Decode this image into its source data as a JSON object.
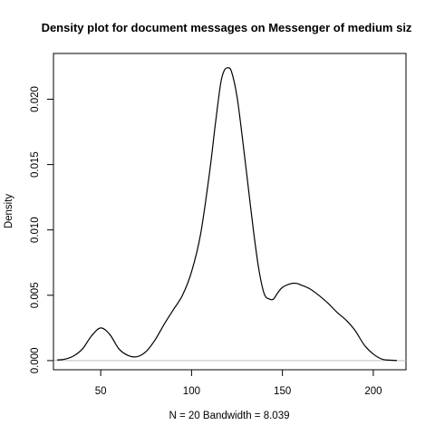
{
  "chart_data": {
    "type": "line",
    "title": "Density plot for document messages on Messenger of medium siz",
    "xlabel": "N = 20   Bandwidth = 8.039",
    "ylabel": "Density",
    "xlim": [
      24,
      218
    ],
    "ylim": [
      -0.0007,
      0.0235
    ],
    "x_ticks": [
      50,
      100,
      150,
      200
    ],
    "y_ticks": [
      0.0,
      0.005,
      0.01,
      0.015,
      0.02
    ],
    "x_tick_labels": [
      "50",
      "100",
      "150",
      "200"
    ],
    "y_tick_labels": [
      "0.000",
      "0.005",
      "0.010",
      "0.015",
      "0.020"
    ],
    "baseline": 0,
    "grid": false,
    "legend": "none",
    "series": [
      {
        "x": [
          26,
          30,
          35,
          40,
          45,
          50,
          55,
          60,
          65,
          70,
          75,
          80,
          85,
          90,
          95,
          100,
          105,
          110,
          113,
          116,
          118,
          120,
          122,
          125,
          128,
          131,
          134,
          137,
          140,
          143,
          145,
          147,
          150,
          155,
          158,
          160,
          165,
          170,
          175,
          180,
          185,
          190,
          195,
          200,
          205,
          210,
          213
        ],
        "y": [
          5e-05,
          0.0001,
          0.00035,
          0.0009,
          0.0019,
          0.0025,
          0.002,
          0.0009,
          0.0004,
          0.0003,
          0.0007,
          0.0016,
          0.0028,
          0.0039,
          0.005,
          0.0068,
          0.0097,
          0.0145,
          0.018,
          0.0212,
          0.0222,
          0.0224,
          0.0221,
          0.0202,
          0.017,
          0.0135,
          0.01,
          0.007,
          0.0051,
          0.0047,
          0.0047,
          0.0051,
          0.0056,
          0.0059,
          0.0059,
          0.0058,
          0.0055,
          0.005,
          0.0044,
          0.0037,
          0.0031,
          0.0023,
          0.0012,
          0.0005,
          0.0001,
          3e-05,
          1e-05
        ]
      }
    ]
  }
}
